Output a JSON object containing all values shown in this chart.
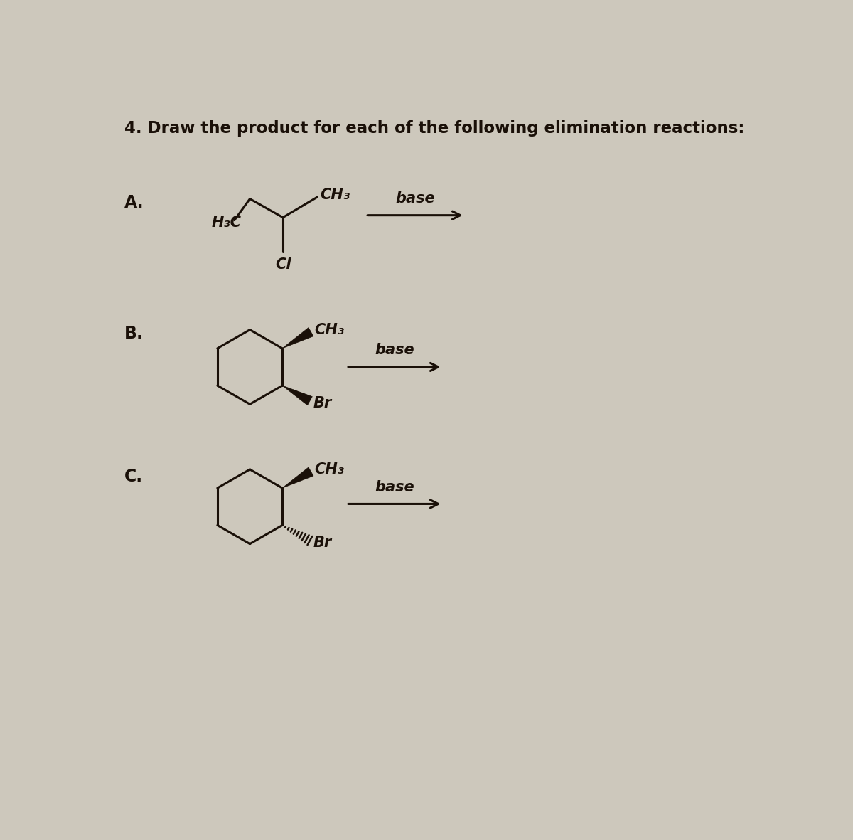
{
  "background_color": "#cdc8bc",
  "title": "4. Draw the product for each of the following elimination reactions:",
  "bond_color": "#1a1008",
  "text_color": "#1a1008",
  "label_A": "A.",
  "label_B": "B.",
  "label_C": "C."
}
